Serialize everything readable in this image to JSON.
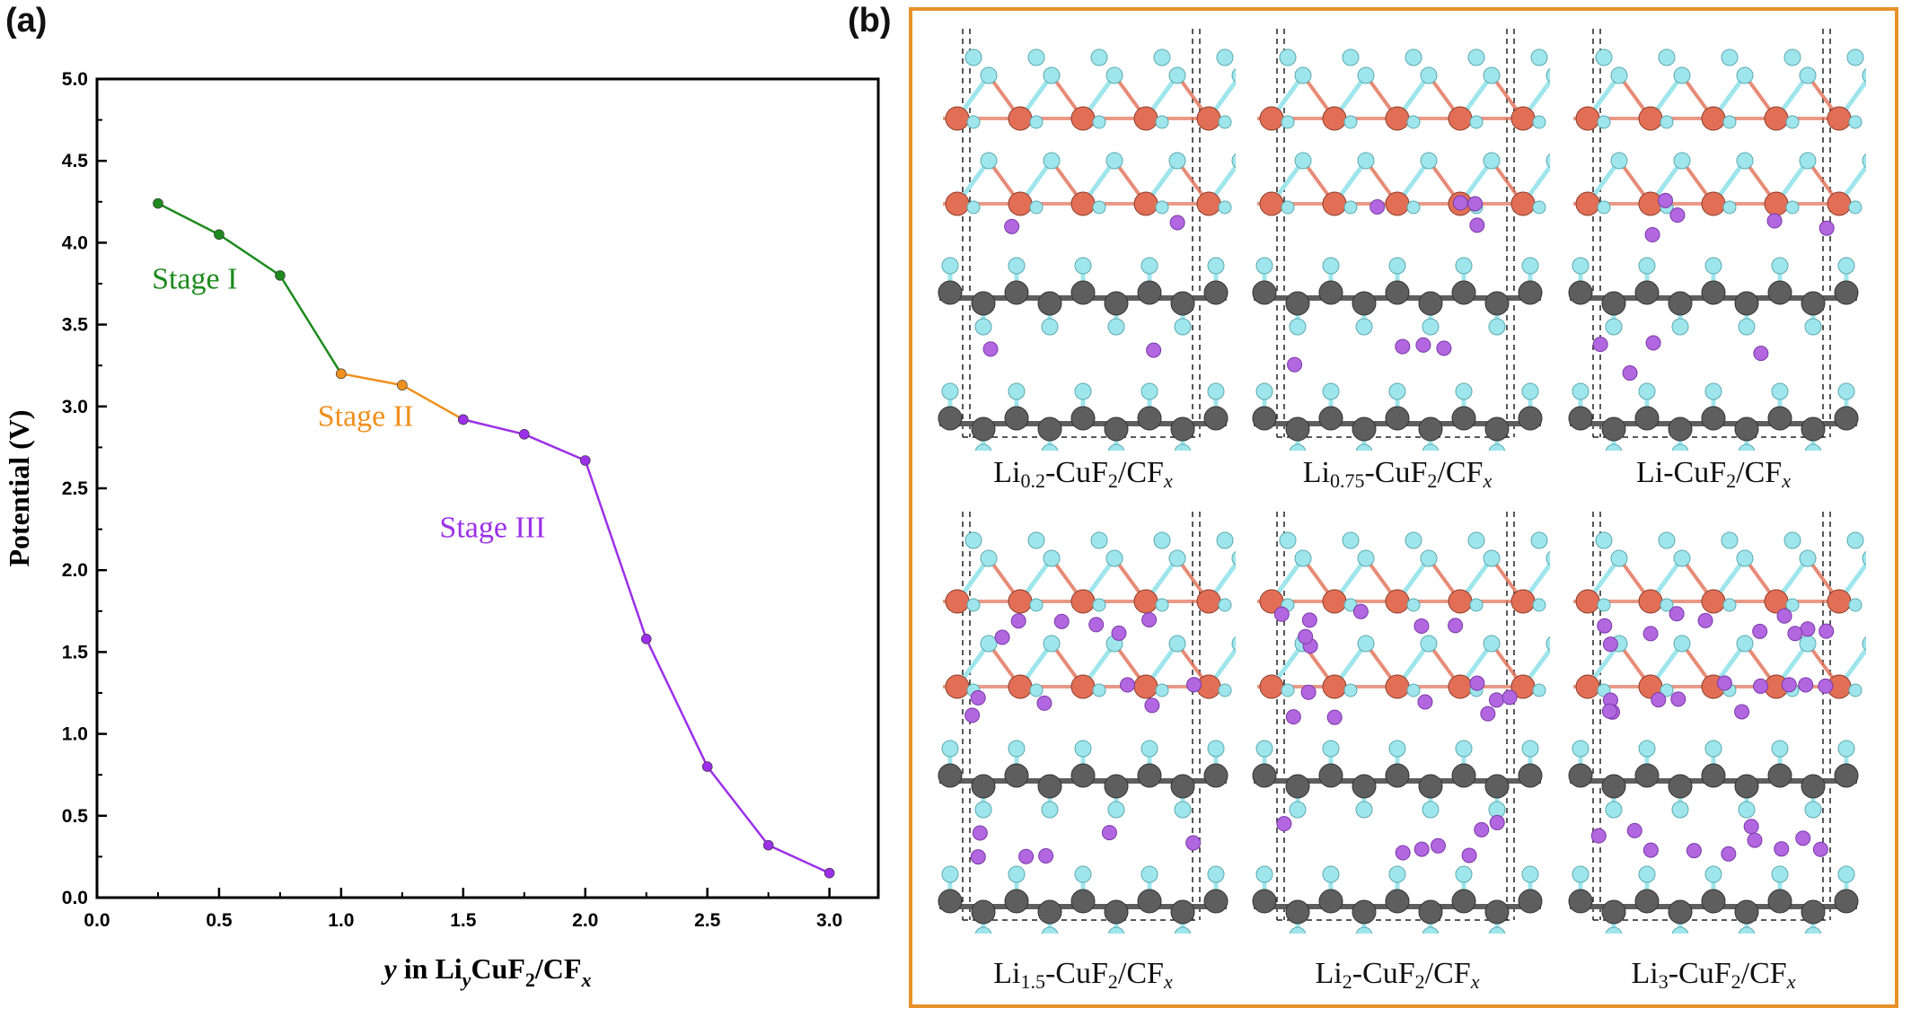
{
  "panel_a": {
    "tag": "(a)",
    "chart_data": {
      "type": "line",
      "xlabel_parts": [
        "y",
        " in Li",
        "y",
        "CuF",
        "2",
        "/CF",
        "x"
      ],
      "ylabel": "Potential (V)",
      "xlim": [
        0.0,
        3.2
      ],
      "ylim": [
        0.0,
        5.0
      ],
      "xticks": [
        0.0,
        0.5,
        1.0,
        1.5,
        2.0,
        2.5,
        3.0
      ],
      "xtick_labels": [
        "0.0",
        "0.5",
        "1.0",
        "1.5",
        "2.0",
        "2.5",
        "3.0"
      ],
      "yticks": [
        0.0,
        0.5,
        1.0,
        1.5,
        2.0,
        2.5,
        3.0,
        3.5,
        4.0,
        4.5,
        5.0
      ],
      "ytick_labels": [
        "0.0",
        "0.5",
        "1.0",
        "1.5",
        "2.0",
        "2.5",
        "3.0",
        "3.5",
        "4.0",
        "4.5",
        "5.0"
      ],
      "grid": false,
      "series": [
        {
          "name": "Stage I",
          "color": "#1E8A1E",
          "x": [
            0.25,
            0.5,
            0.75,
            1.0
          ],
          "y": [
            4.24,
            4.05,
            3.8,
            3.2
          ],
          "label_at": [
            0.4,
            3.72
          ]
        },
        {
          "name": "Stage II",
          "color": "#F0901E",
          "x": [
            1.0,
            1.25,
            1.5
          ],
          "y": [
            3.2,
            3.13,
            2.92
          ],
          "label_at": [
            1.1,
            2.88
          ]
        },
        {
          "name": "Stage III",
          "color": "#9B30E8",
          "x": [
            1.5,
            1.75,
            2.0,
            2.25,
            2.5,
            2.75,
            3.0
          ],
          "y": [
            2.92,
            2.83,
            2.67,
            1.58,
            0.8,
            0.32,
            0.15
          ],
          "label_at": [
            1.62,
            2.2
          ]
        }
      ]
    }
  },
  "panel_b": {
    "tag": "(b)",
    "frame_color": "#E8912A",
    "atom_colors": {
      "copper": "#E26F55",
      "fluorine": "#9FE6EC",
      "carbon": "#5E5E5E",
      "lithium": "#B266E0"
    },
    "structures": [
      {
        "label_main": "Li",
        "label_sub": "0.2",
        "label_rest": "-CuF",
        "label_sub2": "2",
        "label_rest2": "/CF",
        "label_it": "x",
        "li_level": 0.2
      },
      {
        "label_main": "Li",
        "label_sub": "0.75",
        "label_rest": "-CuF",
        "label_sub2": "2",
        "label_rest2": "/CF",
        "label_it": "x",
        "li_level": 0.75
      },
      {
        "label_main": "Li",
        "label_sub": "",
        "label_rest": "-CuF",
        "label_sub2": "2",
        "label_rest2": "/CF",
        "label_it": "x",
        "li_level": 1.0
      },
      {
        "label_main": "Li",
        "label_sub": "1.5",
        "label_rest": "-CuF",
        "label_sub2": "2",
        "label_rest2": "/CF",
        "label_it": "x",
        "li_level": 1.5
      },
      {
        "label_main": "Li",
        "label_sub": "2",
        "label_rest": "-CuF",
        "label_sub2": "2",
        "label_rest2": "/CF",
        "label_it": "x",
        "li_level": 2.0
      },
      {
        "label_main": "Li",
        "label_sub": "3",
        "label_rest": "-CuF",
        "label_sub2": "2",
        "label_rest2": "/CF",
        "label_it": "x",
        "li_level": 3.0
      }
    ]
  }
}
